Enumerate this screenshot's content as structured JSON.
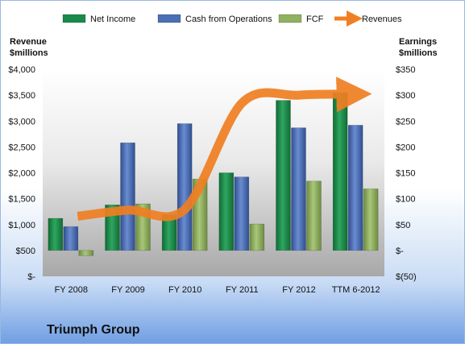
{
  "chart_data": {
    "type": "bar",
    "title": "Triumph Group",
    "categories": [
      "FY 2008",
      "FY 2009",
      "FY 2010",
      "FY 2011",
      "FY 2012",
      "TTM 6-2012"
    ],
    "left_axis_label_line1": "Revenue",
    "left_axis_label_line2": "$millions",
    "right_axis_label_line1": "Earnings",
    "right_axis_label_line2": "$millions",
    "left_axis": {
      "min": 0,
      "max": 4000,
      "step": 500,
      "unit": "$millions"
    },
    "right_axis": {
      "min": -50,
      "max": 350,
      "step": 50,
      "unit": "$millions"
    },
    "left_ticks": [
      "$-",
      "$500",
      "$1,000",
      "$1,500",
      "$2,000",
      "$2,500",
      "$3,000",
      "$3,500",
      "$4,000"
    ],
    "right_ticks": [
      "$(50)",
      "$-",
      "$50",
      "$100",
      "$150",
      "$200",
      "$250",
      "$300",
      "$350"
    ],
    "series": [
      {
        "name": "Net Income",
        "axis": "right",
        "type": "bar",
        "color": "#1a8a4a",
        "values": [
          62,
          88,
          69,
          150,
          290,
          305
        ]
      },
      {
        "name": "Cash from Operations",
        "axis": "right",
        "type": "bar",
        "color": "#4a6fb5",
        "values": [
          46,
          208,
          245,
          142,
          237,
          242
        ]
      },
      {
        "name": "FCF",
        "axis": "right",
        "type": "bar",
        "color": "#8fb160",
        "values": [
          -10,
          90,
          138,
          51,
          134,
          119
        ]
      },
      {
        "name": "Revenues",
        "axis": "left",
        "type": "line",
        "color": "#f07f22",
        "values": [
          1160,
          1280,
          1300,
          3350,
          3500,
          3520
        ]
      }
    ],
    "legend_position": "top",
    "grid": false
  }
}
